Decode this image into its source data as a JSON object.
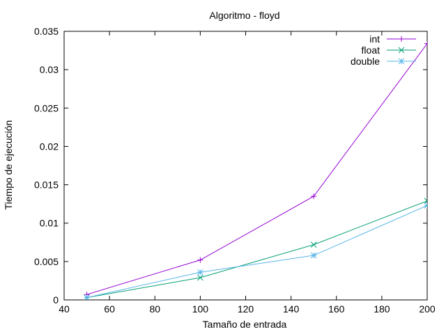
{
  "chart_data": {
    "type": "line",
    "title": "Algoritmo - floyd",
    "xlabel": "Tamaño de entrada",
    "ylabel": "Tiempo de ejecución",
    "xlim": [
      40,
      200
    ],
    "ylim": [
      0,
      0.035
    ],
    "xticks": [
      "40",
      "60",
      "80",
      "100",
      "120",
      "140",
      "160",
      "180",
      "200"
    ],
    "yticks": [
      "0",
      "0.005",
      "0.01",
      "0.015",
      "0.02",
      "0.025",
      "0.03",
      "0.035"
    ],
    "grid": false,
    "legend_position": "top-right",
    "x": [
      50,
      100,
      150,
      200
    ],
    "series": [
      {
        "name": "int",
        "values": [
          0.0007,
          0.0052,
          0.0135,
          0.0334
        ],
        "color": "#9400d3",
        "marker": "plus"
      },
      {
        "name": "float",
        "values": [
          0.0003,
          0.0029,
          0.0072,
          0.0129
        ],
        "color": "#009e73",
        "marker": "cross"
      },
      {
        "name": "double",
        "values": [
          0.0003,
          0.0036,
          0.0058,
          0.0123
        ],
        "color": "#56b4e9",
        "marker": "star"
      }
    ]
  }
}
